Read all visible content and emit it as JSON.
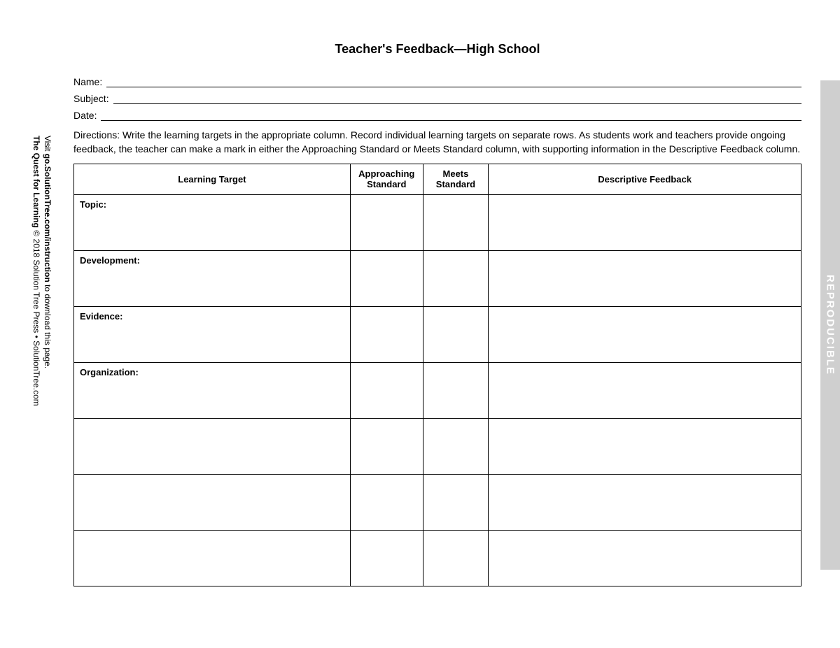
{
  "title": "Teacher's Feedback—High School",
  "fields": {
    "name_label": "Name:",
    "subject_label": "Subject:",
    "date_label": "Date:"
  },
  "directions": "Directions: Write the learning targets in the appropriate column. Record individual learning targets on separate rows. As students work and teachers provide ongoing feedback, the teacher can make a mark in either the Approaching Standard or Meets Standard column, with supporting information in the Descriptive Feedback column.",
  "table": {
    "columns": {
      "learning_target": "Learning Target",
      "approaching": "Approaching Standard",
      "meets": "Meets Standard",
      "descriptive": "Descriptive Feedback"
    },
    "col_widths": {
      "learning_target": "38%",
      "approaching": "10%",
      "meets": "9%",
      "descriptive": "43%"
    },
    "rows": [
      "Topic:",
      "Development:",
      "Evidence:",
      "Organization:",
      "",
      "",
      ""
    ]
  },
  "citation": {
    "line1_a": "The Quest for Learning",
    "line1_b": " © 2018 Solution Tree Press • SolutionTree.com",
    "line2_a": "Visit ",
    "line2_b": "go.SolutionTree.com/instruction",
    "line2_c": " to download this page."
  },
  "side_tab": "REPRODUCIBLE"
}
